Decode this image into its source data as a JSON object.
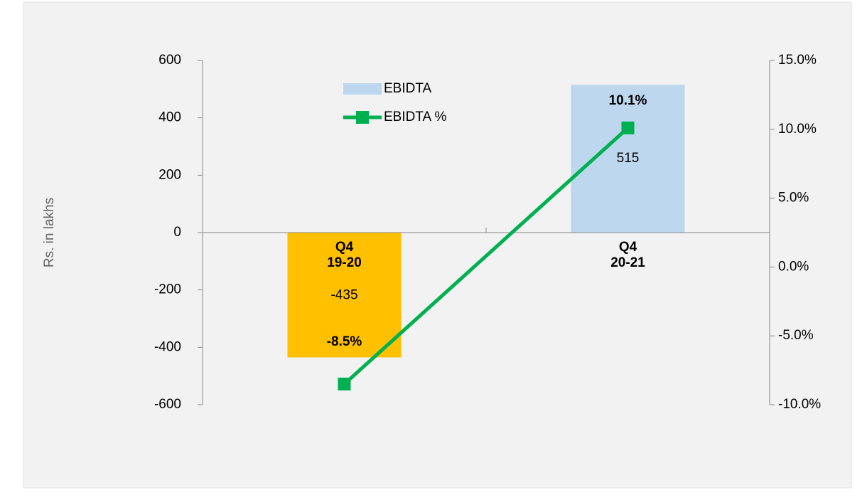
{
  "chart_data": {
    "type": "bar-line",
    "y_label": "Rs. in lakhs",
    "categories": [
      [
        "Q4",
        "19-20"
      ],
      [
        "Q4",
        "20-21"
      ]
    ],
    "series": [
      {
        "name": "EBIDTA",
        "type": "bar",
        "color": "#BDD7EE",
        "colors": [
          "#FFC000",
          "#BDD7EE"
        ],
        "values": [
          -435,
          515
        ]
      },
      {
        "name": "EBIDTA %",
        "type": "line",
        "axis": "y2",
        "color": "#00B050",
        "values": [
          -8.5,
          10.1
        ],
        "value_labels": [
          "-8.5%",
          "10.1%"
        ]
      }
    ],
    "ylim": [
      -600,
      600
    ],
    "yticks": [
      -600,
      -400,
      -200,
      0,
      200,
      400,
      600
    ],
    "y2lim": [
      -10,
      15
    ],
    "y2ticks": [
      {
        "value": -10,
        "label": "-10.0%"
      },
      {
        "value": -5,
        "label": "-5.0%"
      },
      {
        "value": 0,
        "label": "0.0%"
      },
      {
        "value": 5,
        "label": "5.0%"
      },
      {
        "value": 10,
        "label": "10.0%"
      },
      {
        "value": 15,
        "label": "15.0%"
      }
    ],
    "legend": "top-left"
  }
}
